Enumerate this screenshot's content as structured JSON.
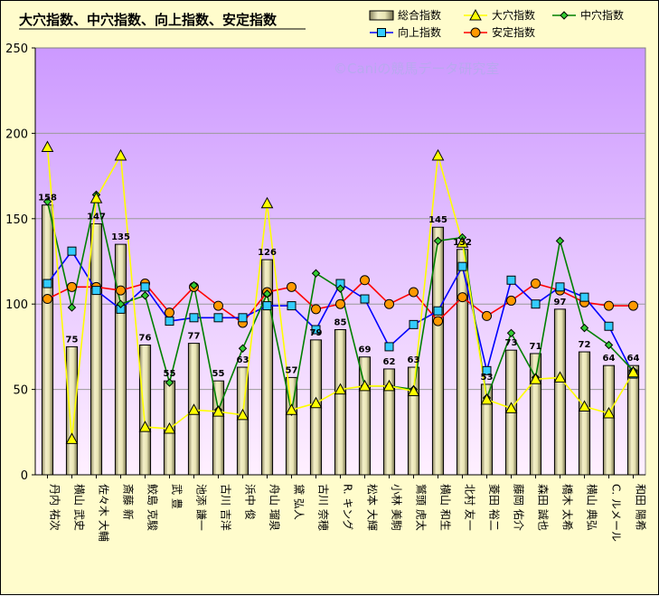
{
  "chart_data": {
    "type": "bar",
    "title": "大穴指数、中穴指数、向上指数、安定指数",
    "watermark": "©Caniの競馬データ研究室",
    "ylim": [
      0,
      250
    ],
    "yticks": [
      0,
      50,
      100,
      150,
      200,
      250
    ],
    "grid": true,
    "legend_position": "top-right",
    "colors": {
      "total": "#e8e4b4",
      "big": "#ffff00",
      "mid": "#008000",
      "up": "#0000ff",
      "stable": "#ff0000",
      "stable_marker": "#ff9900",
      "plot_top": "#cc99ff",
      "plot_bottom": "#fff0ff"
    },
    "categories": [
      "丹内 祐次",
      "横山 武史",
      "佐々木 大輔",
      "斎藤 新",
      "鮫島 克駿",
      "武 豊",
      "池添 謙一",
      "古川 吉洋",
      "浜中 俊",
      "舟山 瑠泉",
      "黛 弘人",
      "古川 奈穂",
      "R. キング",
      "松本 大輝",
      "小林 美駒",
      "鷲頭 虎太",
      "横山 和生",
      "北村 友一",
      "菱田 裕二",
      "藤岡 佑介",
      "森田 誠也",
      "橋木 太希",
      "横山 典弘",
      "C. ルメール",
      "和田 陽希"
    ],
    "series": [
      {
        "key": "total",
        "name": "総合指数",
        "values": [
          158,
          75,
          147,
          135,
          76,
          55,
          77,
          55,
          63,
          126,
          57,
          79,
          85,
          69,
          62,
          63,
          145,
          132,
          53,
          73,
          71,
          97,
          72,
          64,
          64
        ]
      },
      {
        "key": "big",
        "name": "大穴指数",
        "values": [
          192,
          21,
          162,
          187,
          28,
          27,
          38,
          37,
          35,
          159,
          38,
          42,
          50,
          52,
          52,
          49,
          187,
          136,
          44,
          39,
          56,
          57,
          40,
          36,
          60
        ]
      },
      {
        "key": "mid",
        "name": "中穴指数",
        "values": [
          160,
          98,
          164,
          100,
          105,
          54,
          111,
          38,
          74,
          106,
          37,
          118,
          109,
          52,
          52,
          50,
          137,
          139,
          45,
          83,
          57,
          137,
          86,
          76,
          61
        ]
      },
      {
        "key": "up",
        "name": "向上指数",
        "values": [
          112,
          131,
          108,
          97,
          110,
          90,
          92,
          92,
          92,
          99,
          99,
          85,
          112,
          103,
          75,
          88,
          96,
          122,
          61,
          114,
          100,
          110,
          104,
          87,
          59
        ]
      },
      {
        "key": "stable",
        "name": "安定指数",
        "values": [
          103,
          110,
          110,
          108,
          112,
          95,
          110,
          99,
          89,
          107,
          110,
          97,
          100,
          114,
          100,
          107,
          90,
          104,
          93,
          102,
          112,
          108,
          101,
          99,
          99
        ]
      }
    ]
  }
}
